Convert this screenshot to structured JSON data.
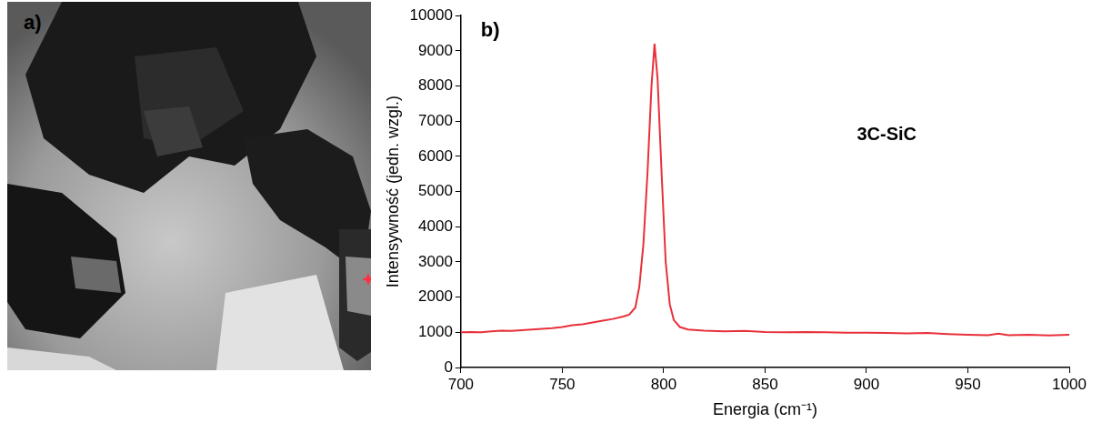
{
  "panel_a": {
    "label": "a)"
  },
  "chart_data": {
    "type": "line",
    "panel_label": "b)",
    "x_label": "Energia (cm⁻¹)",
    "y_label": "Intensywność (jedn. wzgl.)",
    "x": [
      700,
      705,
      710,
      715,
      720,
      725,
      730,
      735,
      740,
      745,
      750,
      755,
      760,
      765,
      770,
      775,
      780,
      783,
      786,
      788,
      790,
      792,
      794,
      795.5,
      797,
      799,
      801,
      803,
      805,
      808,
      812,
      820,
      830,
      840,
      850,
      860,
      870,
      880,
      890,
      900,
      910,
      920,
      930,
      940,
      950,
      960,
      965,
      970,
      980,
      990,
      1000
    ],
    "values": [
      1000,
      1010,
      1000,
      1030,
      1050,
      1040,
      1060,
      1080,
      1100,
      1120,
      1150,
      1200,
      1230,
      1280,
      1330,
      1380,
      1450,
      1500,
      1700,
      2300,
      3500,
      5500,
      8000,
      9200,
      8200,
      5500,
      3000,
      1800,
      1350,
      1150,
      1080,
      1050,
      1030,
      1040,
      1010,
      1000,
      1010,
      1000,
      990,
      990,
      980,
      970,
      980,
      950,
      930,
      920,
      960,
      920,
      930,
      910,
      930
    ],
    "color": "#e8303a",
    "xlim": [
      700,
      1000
    ],
    "xticks": [
      700,
      750,
      800,
      850,
      900,
      950,
      1000
    ],
    "ylim": [
      0,
      10000
    ],
    "yticks": [
      0,
      1000,
      2000,
      3000,
      4000,
      5000,
      6000,
      7000,
      8000,
      9000,
      10000
    ],
    "grid": false,
    "annotations": [
      {
        "text": "3C-SiC",
        "x": 910,
        "y": 6600
      }
    ]
  }
}
